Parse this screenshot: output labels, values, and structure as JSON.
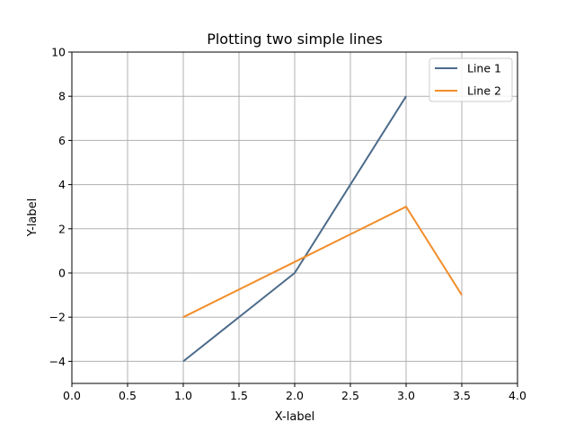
{
  "chart_data": {
    "type": "line",
    "title": "Plotting two simple lines",
    "xlabel": "X-label",
    "ylabel": "Y-label",
    "xlim": [
      0,
      4
    ],
    "ylim": [
      -5,
      10
    ],
    "xticks": [
      0,
      0.5,
      1,
      1.5,
      2,
      2.5,
      3,
      3.5,
      4
    ],
    "xtick_labels": [
      "0.0",
      "0.5",
      "1.0",
      "1.5",
      "2.0",
      "2.5",
      "3.0",
      "3.5",
      "4.0"
    ],
    "yticks": [
      -4,
      -2,
      0,
      2,
      4,
      6,
      8,
      10
    ],
    "ytick_labels": [
      "−4",
      "−2",
      "0",
      "2",
      "4",
      "6",
      "8",
      "10"
    ],
    "grid": true,
    "legend_position": "top-right",
    "series": [
      {
        "name": "Line 1",
        "color": "#4c6b8a",
        "x": [
          1,
          2,
          3
        ],
        "y": [
          -4,
          0,
          8
        ]
      },
      {
        "name": "Line 2",
        "color": "#f28e2b",
        "x": [
          1,
          2,
          3,
          3.5
        ],
        "y": [
          -2,
          0.5,
          3,
          -1
        ]
      }
    ]
  }
}
